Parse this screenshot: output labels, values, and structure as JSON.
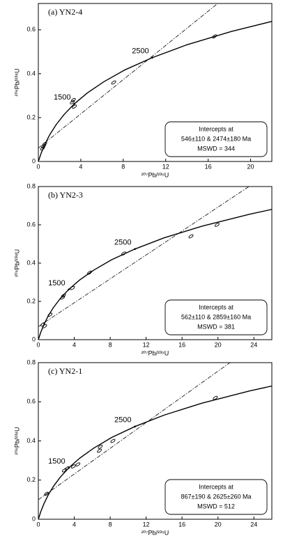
{
  "chart_data": [
    {
      "type": "concordia",
      "title": "(a)  YN2-4",
      "xlabel": "²⁰⁷Pb/²³⁵U",
      "ylabel": "²⁰⁶Pb/²³⁸U",
      "xlim": [
        0,
        22
      ],
      "ylim": [
        0,
        0.72
      ],
      "xticks": [
        0,
        4,
        8,
        12,
        16,
        20
      ],
      "yticks": [
        0,
        0.2,
        0.4,
        0.6
      ],
      "concordia": {
        "x": [
          0,
          0.2792,
          0.6355,
          1.093,
          1.6774,
          2.425,
          3.383,
          4.604,
          6.172,
          8.17,
          10.75,
          14.005,
          18.19,
          22.37
        ],
        "y": [
          0,
          0.0395,
          0.0806,
          0.1234,
          0.1678,
          0.214,
          0.2623,
          0.3119,
          0.3634,
          0.4177,
          0.4735,
          0.532,
          0.5926,
          0.6428
        ]
      },
      "discordia": {
        "x": [
          0,
          16.9
        ],
        "y": [
          0.061,
          0.72
        ]
      },
      "points": {
        "x": [
          0.4,
          0.5,
          0.6,
          3.2,
          3.4,
          3.3,
          7.1,
          16.6
        ],
        "y": [
          0.06,
          0.07,
          0.08,
          0.27,
          0.25,
          0.28,
          0.36,
          0.57
        ]
      },
      "annotations": [
        {
          "text": "1500",
          "x": 3.383,
          "y": 0.2623
        },
        {
          "text": "2500",
          "x": 10.75,
          "y": 0.4735
        }
      ],
      "legend": [
        "Intercepts at",
        "546±110 & 2474±180 Ma",
        "MSWD = 344"
      ]
    },
    {
      "type": "concordia",
      "title": "(b)  YN2-3",
      "xlabel": "²⁰⁷Pb/²³⁵U",
      "ylabel": "²⁰⁶Pb/²³⁸U",
      "xlim": [
        0,
        26
      ],
      "ylim": [
        0,
        0.8
      ],
      "xticks": [
        0,
        4,
        8,
        12,
        16,
        20,
        24
      ],
      "yticks": [
        0,
        0.2,
        0.4,
        0.6,
        0.8
      ],
      "concordia": {
        "x": [
          0,
          0.2792,
          0.6355,
          1.093,
          1.6774,
          2.425,
          3.383,
          4.604,
          6.172,
          8.17,
          10.75,
          14.005,
          18.19,
          23.55,
          26.09
        ],
        "y": [
          0,
          0.0395,
          0.0806,
          0.1234,
          0.1678,
          0.214,
          0.2623,
          0.3119,
          0.3634,
          0.4177,
          0.4735,
          0.532,
          0.5926,
          0.6556,
          0.6815
        ]
      },
      "discordia": {
        "x": [
          0,
          23.45
        ],
        "y": [
          0.068,
          0.8
        ]
      },
      "points": {
        "x": [
          0.5,
          0.7,
          1.3,
          2.7,
          2.8,
          3.8,
          5.7,
          9.5,
          17,
          19.9
        ],
        "y": [
          0.08,
          0.07,
          0.13,
          0.22,
          0.23,
          0.27,
          0.35,
          0.45,
          0.54,
          0.6
        ]
      },
      "annotations": [
        {
          "text": "1500",
          "x": 3.383,
          "y": 0.2623
        },
        {
          "text": "2500",
          "x": 10.75,
          "y": 0.4735
        }
      ],
      "legend": [
        "Intercepts at",
        "562±110 & 2859±160 Ma",
        "MSWD = 381"
      ]
    },
    {
      "type": "concordia",
      "title": "(c)  YN2-1",
      "xlabel": "²⁰⁷Pb/²³⁵U",
      "ylabel": "²⁰⁶Pb/²³⁸U",
      "xlim": [
        0,
        26
      ],
      "ylim": [
        0,
        0.8
      ],
      "xticks": [
        0,
        4,
        8,
        12,
        16,
        20,
        24
      ],
      "yticks": [
        0,
        0.2,
        0.4,
        0.6,
        0.8
      ],
      "concordia": {
        "x": [
          0,
          0.2792,
          0.6355,
          1.093,
          1.6774,
          2.425,
          3.383,
          4.604,
          6.172,
          8.17,
          10.75,
          14.005,
          18.19,
          23.55,
          26.09
        ],
        "y": [
          0,
          0.0395,
          0.0806,
          0.1234,
          0.1678,
          0.214,
          0.2623,
          0.3119,
          0.3634,
          0.4177,
          0.4735,
          0.532,
          0.5926,
          0.6556,
          0.6815
        ]
      },
      "discordia": {
        "x": [
          0,
          21.33
        ],
        "y": [
          0.0997,
          0.8
        ]
      },
      "points": {
        "x": [
          0.9,
          2.9,
          3.2,
          3.9,
          4.4,
          6.8,
          6.9,
          8.3,
          19.7
        ],
        "y": [
          0.13,
          0.25,
          0.26,
          0.27,
          0.28,
          0.35,
          0.37,
          0.4,
          0.62
        ]
      },
      "annotations": [
        {
          "text": "1500",
          "x": 3.383,
          "y": 0.2623
        },
        {
          "text": "2500",
          "x": 10.75,
          "y": 0.4735
        }
      ],
      "legend": [
        "Intercepts at",
        "867±190 & 2625±260 Ma",
        "MSWD = 512"
      ]
    }
  ]
}
